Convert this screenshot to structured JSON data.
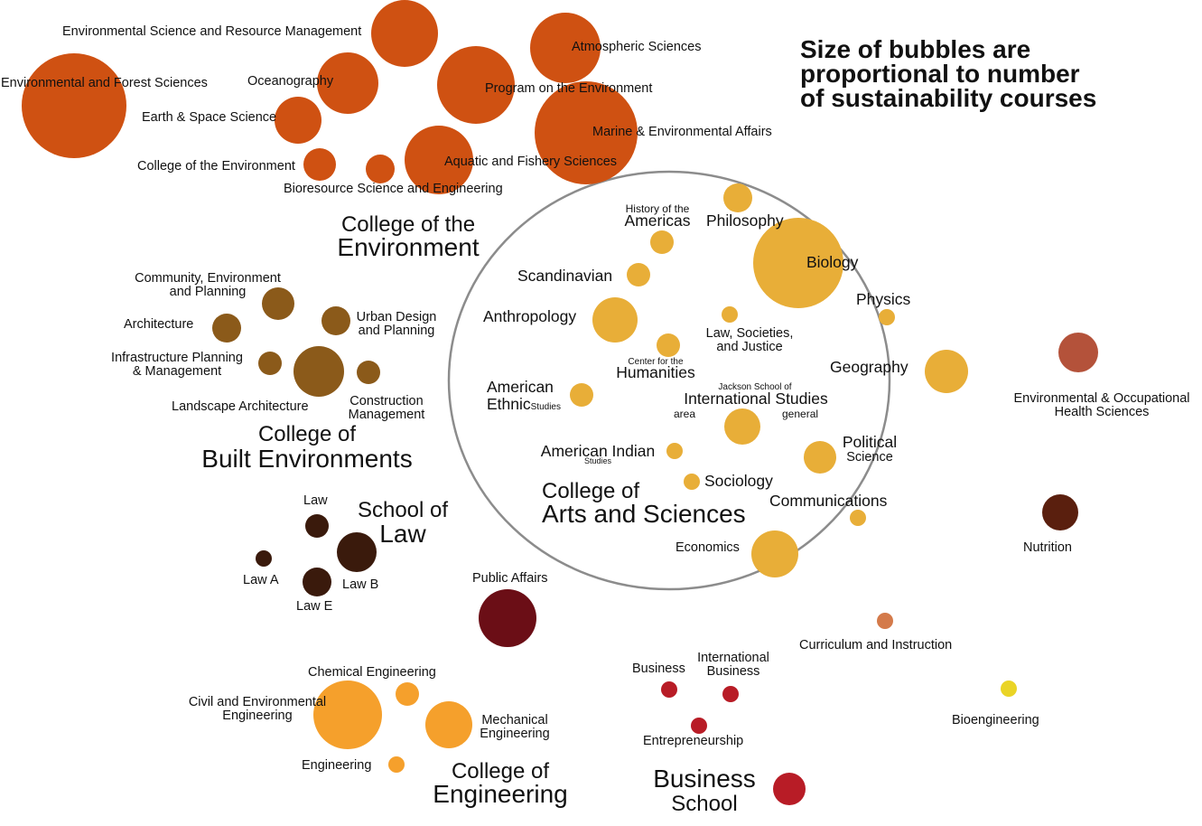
{
  "note": {
    "line1": "Size of bubbles are",
    "line2": "proportional to number",
    "line3": "of sustainability courses"
  },
  "colors": {
    "environment": "#cf5112",
    "arts_sciences": "#e8ae38",
    "built_env": "#8b5a1a",
    "law": "#3a1a0c",
    "public_affairs": "#6b0e16",
    "engineering": "#f5a02c",
    "business": "#b81c26",
    "env_occ_health": "#b4523a",
    "nutrition": "#5a1f0e",
    "curriculum": "#d47a4a",
    "bioengineering": "#ead426",
    "ellipse_stroke": "#8c8c8c"
  },
  "groups": {
    "environment": {
      "line1": "College of the",
      "line2": "Environment"
    },
    "built_env": {
      "line1": "College of",
      "line2": "Built Environments"
    },
    "law": {
      "line1": "School of",
      "line2": "Law"
    },
    "arts_sciences": {
      "line1": "College of",
      "line2": "Arts and Sciences"
    },
    "engineering": {
      "line1": "College of",
      "line2": "Engineering"
    },
    "business": {
      "line1": "Business",
      "line2": "School"
    }
  },
  "units": {
    "esrm": "Environmental Science and Resource Management",
    "efs": "Environmental and Forest Sciences",
    "ocean": "Oceanography",
    "ess": "Earth & Space Science",
    "coe": "College of the Environment",
    "bse": "Bioresource Science and Engineering",
    "atmos": "Atmospheric Sciences",
    "poe": "Program on the Environment",
    "smea": "Marine & Environmental Affairs",
    "afs": "Aquatic and Fishery Sciences",
    "cep_1": "Community, Environment",
    "cep_2": "and Planning",
    "arch": "Architecture",
    "udp_1": "Urban Design",
    "udp_2": "and Planning",
    "ipm_1": "Infrastructure Planning",
    "ipm_2": "& Management",
    "la": "Landscape Architecture",
    "cm_1": "Construction",
    "cm_2": "Management",
    "law": "Law",
    "law_a": "Law A",
    "law_b": "Law B",
    "law_e": "Law E",
    "public_affairs": "Public Affairs",
    "hota_1": "History of the",
    "hota_2": "Americas",
    "philosophy": "Philosophy",
    "biology": "Biology",
    "scandinavian": "Scandinavian",
    "physics": "Physics",
    "anthropology": "Anthropology",
    "lsj_1": "Law, Societies,",
    "lsj_2": "and Justice",
    "cfh_1": "Center for the",
    "cfh_2": "Humanities",
    "geography": "Geography",
    "jsis_1": "Jackson School of",
    "jsis_2": "International Studies",
    "jsis_area": "area",
    "jsis_general": "general",
    "aes_1": "American",
    "aes_2": "Ethnic",
    "aes_3": "Studies",
    "ais_1": "American Indian",
    "ais_2": "Studies",
    "polisci_1": "Political",
    "polisci_2": "Science",
    "sociology": "Sociology",
    "communications": "Communications",
    "economics": "Economics",
    "chem_eng": "Chemical Engineering",
    "cee_1": "Civil and Environmental",
    "cee_2": "Engineering",
    "mech_1": "Mechanical",
    "mech_2": "Engineering",
    "engineering": "Engineering",
    "business": "Business",
    "intl_bus_1": "International",
    "intl_bus_2": "Business",
    "entrepreneurship": "Entrepreneurship",
    "eoh_1": "Environmental & Occupational",
    "eoh_2": "Health Sciences",
    "nutrition": "Nutrition",
    "curriculum": "Curriculum and Instruction",
    "bioengineering": "Bioengineering"
  },
  "bubbles": [
    {
      "name": "esrm-bubble",
      "group": "environment",
      "r": 37
    },
    {
      "name": "efs-bubble",
      "group": "environment",
      "r": 58
    },
    {
      "name": "ocean-bubble",
      "group": "environment",
      "r": 34
    },
    {
      "name": "ess-bubble",
      "group": "environment",
      "r": 26
    },
    {
      "name": "coe-bubble",
      "group": "environment",
      "r": 18
    },
    {
      "name": "bse-bubble",
      "group": "environment",
      "r": 16
    },
    {
      "name": "afs-bubble",
      "group": "environment",
      "r": 38
    },
    {
      "name": "poe-bubble",
      "group": "environment",
      "r": 43
    },
    {
      "name": "atmos-bubble",
      "group": "environment",
      "r": 39
    },
    {
      "name": "smea-bubble",
      "group": "environment",
      "r": 57
    },
    {
      "name": "cep-bubble",
      "group": "built_env",
      "r": 18
    },
    {
      "name": "arch-bubble",
      "group": "built_env",
      "r": 16
    },
    {
      "name": "udp-bubble",
      "group": "built_env",
      "r": 16
    },
    {
      "name": "ipm-bubble",
      "group": "built_env",
      "r": 13
    },
    {
      "name": "la-bubble",
      "group": "built_env",
      "r": 28
    },
    {
      "name": "cm-bubble",
      "group": "built_env",
      "r": 13
    },
    {
      "name": "law-bubble",
      "group": "law",
      "r": 13
    },
    {
      "name": "law-a-bubble",
      "group": "law",
      "r": 9
    },
    {
      "name": "law-b-bubble",
      "group": "law",
      "r": 22
    },
    {
      "name": "law-e-bubble",
      "group": "law",
      "r": 16
    },
    {
      "name": "public-affairs-bubble",
      "group": "public_affairs",
      "r": 32
    },
    {
      "name": "philosophy-bubble",
      "group": "arts_sciences",
      "r": 16
    },
    {
      "name": "hota-bubble",
      "group": "arts_sciences",
      "r": 13
    },
    {
      "name": "biology-bubble",
      "group": "arts_sciences",
      "r": 50
    },
    {
      "name": "scandinavian-bubble",
      "group": "arts_sciences",
      "r": 13
    },
    {
      "name": "physics-bubble",
      "group": "arts_sciences",
      "r": 9
    },
    {
      "name": "anthropology-bubble",
      "group": "arts_sciences",
      "r": 25
    },
    {
      "name": "lsj-bubble",
      "group": "arts_sciences",
      "r": 9
    },
    {
      "name": "cfh-bubble",
      "group": "arts_sciences",
      "r": 13
    },
    {
      "name": "geography-bubble",
      "group": "arts_sciences",
      "r": 24
    },
    {
      "name": "aes-bubble",
      "group": "arts_sciences",
      "r": 13
    },
    {
      "name": "jsis-bubble",
      "group": "arts_sciences",
      "r": 20
    },
    {
      "name": "ais-bubble",
      "group": "arts_sciences",
      "r": 9
    },
    {
      "name": "polisci-bubble",
      "group": "arts_sciences",
      "r": 18
    },
    {
      "name": "sociology-bubble",
      "group": "arts_sciences",
      "r": 9
    },
    {
      "name": "communications-bubble",
      "group": "arts_sciences",
      "r": 9
    },
    {
      "name": "economics-bubble",
      "group": "arts_sciences",
      "r": 26
    },
    {
      "name": "chem-eng-bubble",
      "group": "engineering",
      "r": 13
    },
    {
      "name": "cee-bubble",
      "group": "engineering",
      "r": 38
    },
    {
      "name": "mech-bubble",
      "group": "engineering",
      "r": 26
    },
    {
      "name": "engineering-bubble",
      "group": "engineering",
      "r": 9
    },
    {
      "name": "business-bubble",
      "group": "business",
      "r": 9
    },
    {
      "name": "intl-bus-bubble",
      "group": "business",
      "r": 9
    },
    {
      "name": "entrepreneurship-bubble",
      "group": "business",
      "r": 9
    },
    {
      "name": "business-school-bubble",
      "group": "business",
      "r": 18
    },
    {
      "name": "eoh-bubble",
      "group": "env_occ_health",
      "r": 22
    },
    {
      "name": "nutrition-bubble",
      "group": "nutrition",
      "r": 20
    },
    {
      "name": "curriculum-bubble",
      "group": "curriculum",
      "r": 9
    },
    {
      "name": "bioengineering-bubble",
      "group": "bioengineering",
      "r": 9
    }
  ]
}
